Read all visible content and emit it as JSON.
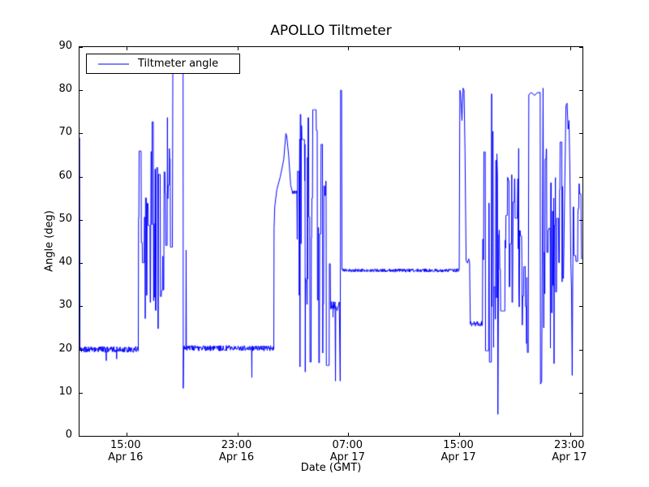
{
  "chart_data": {
    "type": "line",
    "title": "APOLLO Tiltmeter",
    "xlabel": "Date (GMT)",
    "ylabel": "Angle (deg)",
    "legend_label": "Tiltmeter angle",
    "legend_position": "upper left",
    "line_color": "#0000ff",
    "legend_line_color": "#8080ff",
    "axis_color": "#000000",
    "background_color": "#ffffff",
    "ylim": [
      0,
      90
    ],
    "yticks": [
      0,
      10,
      20,
      30,
      40,
      50,
      60,
      70,
      80,
      90
    ],
    "xlim_hours": [
      11.62,
      47.89
    ],
    "xticks": [
      {
        "hours": 15,
        "time": "15:00",
        "date": "Apr 16"
      },
      {
        "hours": 23,
        "time": "23:00",
        "date": "Apr 16"
      },
      {
        "hours": 31,
        "time": "07:00",
        "date": "Apr 17"
      },
      {
        "hours": 39,
        "time": "15:00",
        "date": "Apr 17"
      },
      {
        "hours": 47,
        "time": "23:00",
        "date": "Apr 17"
      }
    ],
    "grid": false,
    "seed": 20170416,
    "x_unit": "hours since Apr 16 00:00 GMT",
    "segments": [
      {
        "type": "path",
        "pts": [
          [
            11.63,
            69
          ],
          [
            11.66,
            20
          ]
        ]
      },
      {
        "type": "noise",
        "t": [
          11.66,
          15.88
        ],
        "base": 20.0,
        "amp": 0.7,
        "dips": [
          [
            13.55,
            17.4
          ],
          [
            14.3,
            17.8
          ]
        ]
      },
      {
        "type": "chaos",
        "t": [
          15.88,
          18.33
        ],
        "lo": 24,
        "hi": 77
      },
      {
        "type": "path",
        "pts": [
          [
            18.35,
            84.5
          ],
          [
            18.55,
            85
          ],
          [
            18.75,
            84.3
          ],
          [
            19.0,
            84.8
          ],
          [
            19.09,
            84.5
          ],
          [
            19.1,
            11
          ],
          [
            19.14,
            20.5
          ]
        ]
      },
      {
        "type": "noise",
        "t": [
          19.14,
          19.27
        ],
        "base": 20.3,
        "amp": 0.6
      },
      {
        "type": "path",
        "pts": [
          [
            19.29,
            20
          ],
          [
            19.31,
            43
          ],
          [
            19.33,
            20.2
          ]
        ]
      },
      {
        "type": "noise",
        "t": [
          19.33,
          25.62
        ],
        "base": 20.3,
        "amp": 0.65,
        "dips": [
          [
            24.05,
            13.5
          ]
        ]
      },
      {
        "type": "path",
        "pts": [
          [
            25.63,
            20
          ],
          [
            25.65,
            48
          ],
          [
            25.7,
            53
          ],
          [
            25.85,
            57
          ],
          [
            26.1,
            60
          ],
          [
            26.35,
            64
          ],
          [
            26.5,
            70
          ],
          [
            26.56,
            69.5
          ],
          [
            26.7,
            65
          ],
          [
            26.85,
            58
          ],
          [
            26.97,
            56.5
          ]
        ]
      },
      {
        "type": "noise",
        "t": [
          26.97,
          27.3
        ],
        "base": 56.4,
        "amp": 0.4
      },
      {
        "type": "chaos",
        "t": [
          27.32,
          29.7
        ],
        "lo": 13,
        "hi": 78
      },
      {
        "type": "noise",
        "t": [
          29.72,
          30.06
        ],
        "base": 30.2,
        "amp": 0.9,
        "dips": [
          [
            29.9,
            27.5
          ]
        ]
      },
      {
        "type": "path",
        "pts": [
          [
            30.08,
            12.7
          ],
          [
            30.1,
            30
          ],
          [
            30.2,
            29
          ],
          [
            30.35,
            31
          ],
          [
            30.42,
            12.7
          ],
          [
            30.45,
            80
          ],
          [
            30.52,
            80
          ],
          [
            30.55,
            38.5
          ]
        ]
      },
      {
        "type": "noise",
        "t": [
          30.56,
          38.94
        ],
        "base": 38.3,
        "amp": 0.4
      },
      {
        "type": "path",
        "pts": [
          [
            39.0,
            38.5
          ],
          [
            39.05,
            80
          ],
          [
            39.1,
            79.5
          ],
          [
            39.2,
            73
          ],
          [
            39.28,
            80.5
          ],
          [
            39.35,
            80
          ],
          [
            39.42,
            66
          ],
          [
            39.5,
            40.5
          ],
          [
            39.6,
            40
          ],
          [
            39.68,
            41
          ],
          [
            39.75,
            40.2
          ],
          [
            39.8,
            26.5
          ]
        ]
      },
      {
        "type": "noise",
        "t": [
          39.8,
          40.68
        ],
        "base": 26.0,
        "amp": 0.6
      },
      {
        "type": "chaos",
        "t": [
          40.7,
          41.74
        ],
        "lo": 16,
        "hi": 81
      },
      {
        "type": "path",
        "pts": [
          [
            41.76,
            60
          ],
          [
            41.79,
            5
          ],
          [
            41.82,
            25
          ]
        ]
      },
      {
        "type": "chaos",
        "t": [
          41.85,
          43.3
        ],
        "lo": 25,
        "hi": 68
      },
      {
        "type": "chaos",
        "t": [
          43.3,
          44.0
        ],
        "lo": 18,
        "hi": 50
      },
      {
        "type": "path",
        "pts": [
          [
            44.02,
            79
          ],
          [
            44.2,
            79.5
          ],
          [
            44.45,
            78.8
          ],
          [
            44.6,
            79.4
          ],
          [
            44.84,
            79.5
          ],
          [
            44.86,
            12
          ],
          [
            44.95,
            12.5
          ],
          [
            45.05,
            80.5
          ],
          [
            45.1,
            25
          ]
        ]
      },
      {
        "type": "chaos",
        "t": [
          45.12,
          46.54
        ],
        "lo": 15,
        "hi": 70
      },
      {
        "type": "path",
        "pts": [
          [
            46.6,
            55
          ],
          [
            46.7,
            76.5
          ],
          [
            46.78,
            77
          ],
          [
            46.85,
            71
          ],
          [
            46.92,
            73
          ],
          [
            46.98,
            62
          ],
          [
            47.05,
            40
          ],
          [
            47.1,
            34
          ],
          [
            47.15,
            14
          ],
          [
            47.2,
            42
          ]
        ]
      },
      {
        "type": "chaos",
        "t": [
          47.22,
          47.8
        ],
        "lo": 40,
        "hi": 66
      },
      {
        "type": "path",
        "pts": [
          [
            47.82,
            41
          ],
          [
            47.87,
            41
          ]
        ]
      }
    ]
  }
}
